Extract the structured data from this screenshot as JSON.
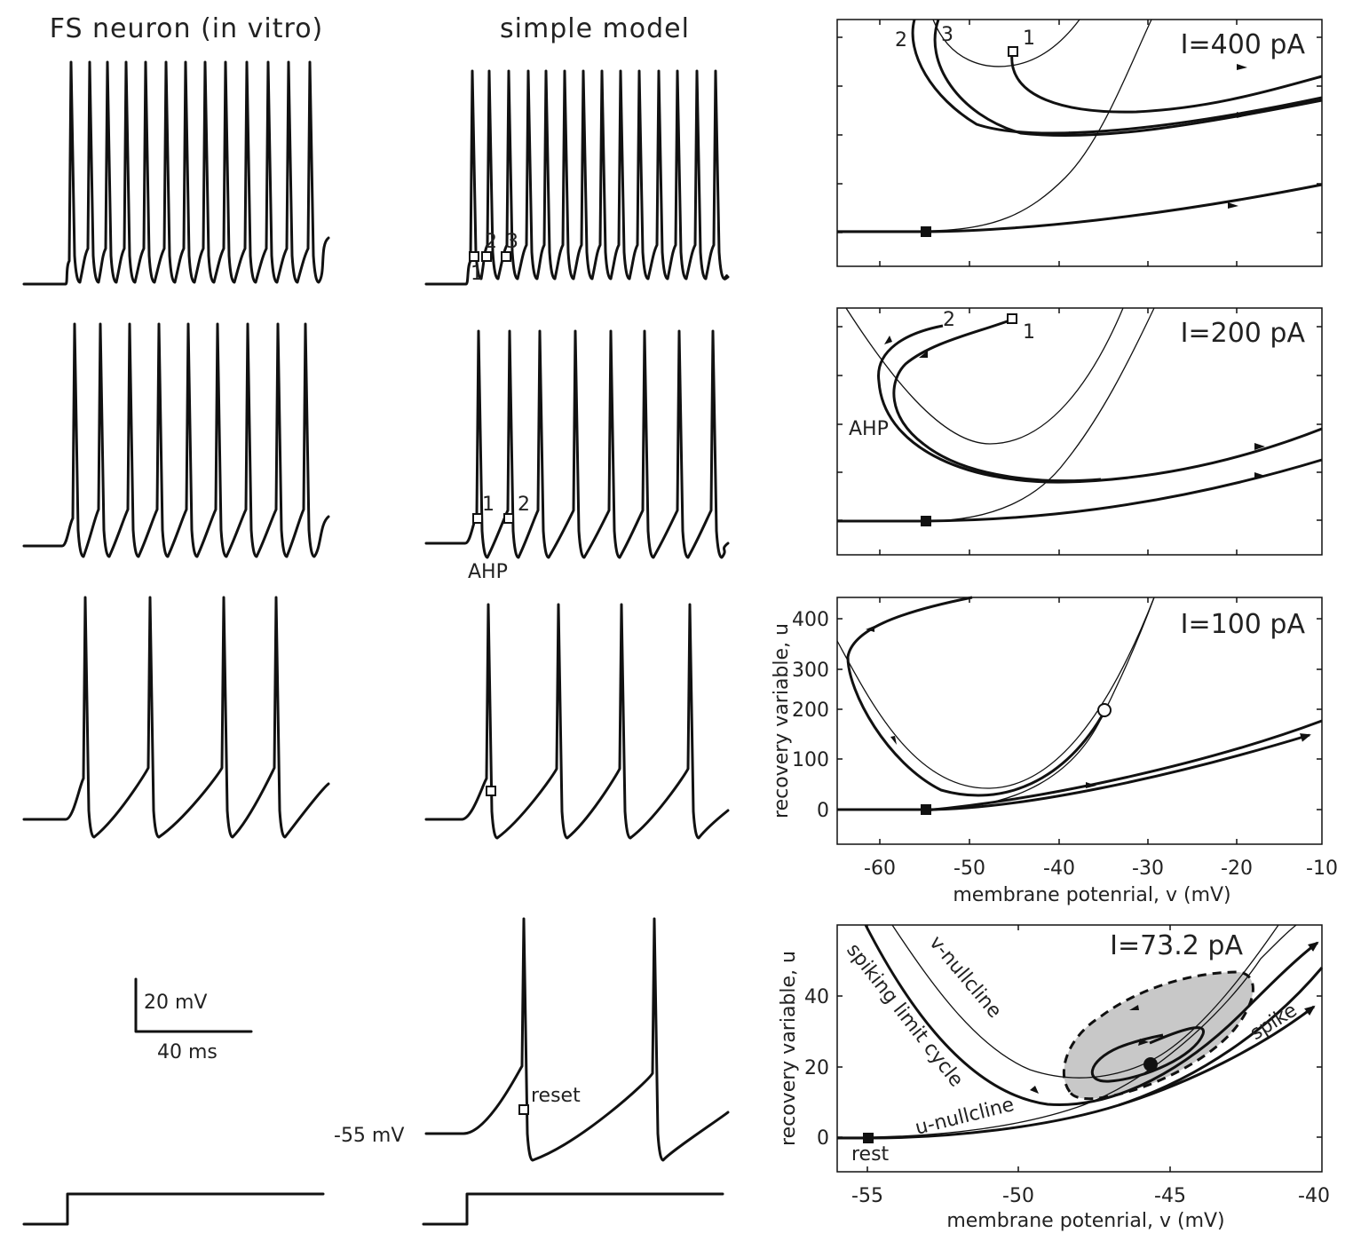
{
  "titles": {
    "col1": "FS neuron (in vitro)",
    "col2": "simple model"
  },
  "panels": [
    {
      "current": "I=400 pA"
    },
    {
      "current": "I=200 pA"
    },
    {
      "current": "I=100 pA"
    },
    {
      "current": "I=73.2 pA"
    }
  ],
  "trace_markers": {
    "row1": [
      "1",
      "2",
      "3"
    ],
    "row2": [
      "1",
      "2"
    ],
    "ahp": "AHP",
    "reset": "reset",
    "level": "-55 mV"
  },
  "phase_markers": {
    "p1": [
      "1",
      "2",
      "3"
    ],
    "p2": [
      "1",
      "2"
    ],
    "ahp": "AHP"
  },
  "scalebar": {
    "voltage": "20 mV",
    "time": "40 ms"
  },
  "axes": {
    "ylabel": "recovery variable, u",
    "xlabel": "membrane potenrial, v (mV)",
    "p3_xticks": [
      "-60",
      "-50",
      "-40",
      "-30",
      "-20",
      "-10"
    ],
    "p3_yticks": [
      "400",
      "300",
      "200",
      "100",
      "0"
    ],
    "p4_xticks": [
      "-55",
      "-50",
      "-45",
      "-40"
    ],
    "p4_yticks": [
      "40",
      "20",
      "0"
    ]
  },
  "annotations": {
    "v_nullcline": "v-nullcline",
    "u_nullcline": "u-nullcline",
    "limit_cycle": "spiking limit cycle",
    "spike": "spike",
    "rest": "rest"
  },
  "colors": {
    "ink": "#111111",
    "shade": "#c8c8c8"
  }
}
